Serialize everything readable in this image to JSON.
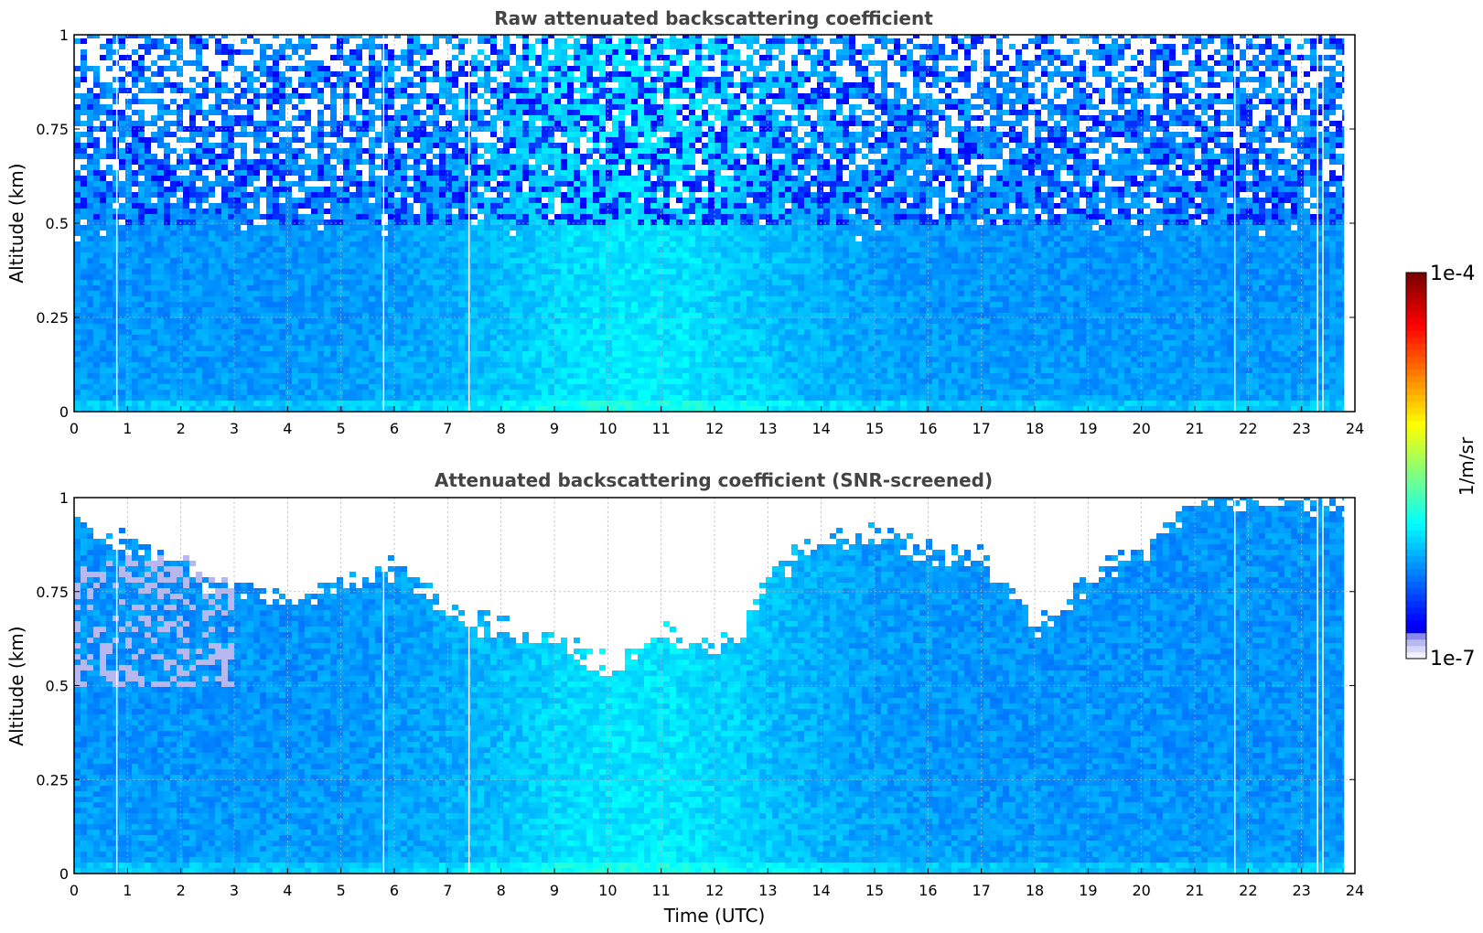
{
  "chart_data": [
    {
      "type": "heatmap",
      "title": "Raw attenuated backscattering coefficient",
      "xlabel": "",
      "ylabel": "Altitude (km)",
      "xlim": [
        0,
        24
      ],
      "ylim": [
        0,
        1
      ],
      "xticks": [
        "0",
        "1",
        "2",
        "3",
        "4",
        "5",
        "6",
        "7",
        "8",
        "9",
        "10",
        "11",
        "12",
        "13",
        "14",
        "15",
        "16",
        "17",
        "18",
        "19",
        "20",
        "21",
        "22",
        "23",
        "24"
      ],
      "yticks": [
        "0",
        "0.25",
        "0.5",
        "0.75",
        "1"
      ],
      "grid": true,
      "data_end_hour": 23.8,
      "gap_times_utc": [
        0.8,
        5.8,
        7.4,
        21.75,
        23.3,
        23.4
      ],
      "colorscale": "jet",
      "colorbar_range": [
        "1e-7",
        "1e-4"
      ]
    },
    {
      "type": "heatmap",
      "title": "Attenuated backscattering coefficient (SNR-screened)",
      "xlabel": "Time (UTC)",
      "ylabel": "Altitude (km)",
      "xlim": [
        0,
        24
      ],
      "ylim": [
        0,
        1
      ],
      "xticks": [
        "0",
        "1",
        "2",
        "3",
        "4",
        "5",
        "6",
        "7",
        "8",
        "9",
        "10",
        "11",
        "12",
        "13",
        "14",
        "15",
        "16",
        "17",
        "18",
        "19",
        "20",
        "21",
        "22",
        "23",
        "24"
      ],
      "yticks": [
        "0",
        "0.25",
        "0.5",
        "0.75",
        "1"
      ],
      "grid": true,
      "data_end_hour": 23.8,
      "gap_times_utc": [
        0.8,
        5.8,
        7.4,
        21.75,
        23.3,
        23.4
      ],
      "colorscale": "jet",
      "colorbar_range": [
        "1e-7",
        "1e-4"
      ],
      "valid_data_top_km": [
        [
          0,
          0.95
        ],
        [
          1,
          0.88
        ],
        [
          2,
          0.82
        ],
        [
          3,
          0.76
        ],
        [
          4,
          0.74
        ],
        [
          5,
          0.78
        ],
        [
          6,
          0.82
        ],
        [
          7,
          0.7
        ],
        [
          8,
          0.66
        ],
        [
          9,
          0.62
        ],
        [
          10,
          0.55
        ],
        [
          11,
          0.65
        ],
        [
          12,
          0.6
        ],
        [
          12.5,
          0.65
        ],
        [
          13,
          0.82
        ],
        [
          14,
          0.88
        ],
        [
          15,
          0.92
        ],
        [
          16,
          0.86
        ],
        [
          17,
          0.84
        ],
        [
          18,
          0.65
        ],
        [
          19,
          0.8
        ],
        [
          20,
          0.88
        ],
        [
          21,
          1.0
        ],
        [
          22,
          1.0
        ],
        [
          23,
          1.0
        ],
        [
          23.8,
          1.0
        ]
      ]
    }
  ],
  "colorbar": {
    "max_label": "1e-4",
    "min_label": "1e-7",
    "unit_label": "1/m/sr",
    "colors": [
      "#f2f2ff",
      "#0000ff",
      "#00aaff",
      "#00ffcc",
      "#ffff00",
      "#ff6600",
      "#cc0000",
      "#800000"
    ]
  }
}
